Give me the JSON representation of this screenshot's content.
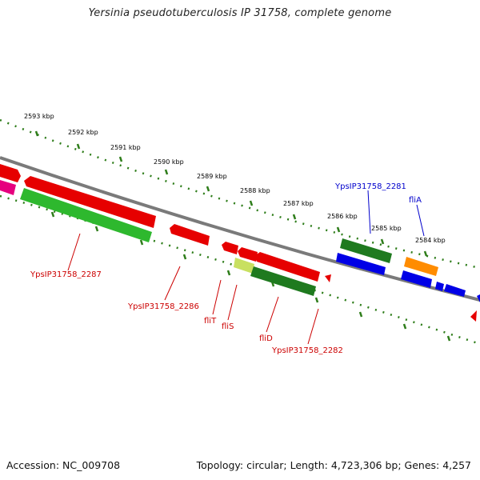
{
  "title": "Yersinia pseudotuberculosis IP 31758, complete genome",
  "footer": {
    "accession": "Accession: NC_009708",
    "summary": "Topology: circular; Length: 4,723,306 bp; Genes: 4,257"
  },
  "ticks": [
    {
      "label": "2593 kbp"
    },
    {
      "label": "2592 kbp"
    },
    {
      "label": "2591 kbp"
    },
    {
      "label": "2590 kbp"
    },
    {
      "label": "2589 kbp"
    },
    {
      "label": "2588 kbp"
    },
    {
      "label": "2587 kbp"
    },
    {
      "label": "2586 kbp"
    },
    {
      "label": "2585 kbp"
    },
    {
      "label": "2584 kbp"
    }
  ],
  "gene_labels": [
    {
      "text": "YpsIP31758_2287",
      "color": "#cc0000"
    },
    {
      "text": "YpsIP31758_2286",
      "color": "#cc0000"
    },
    {
      "text": "fliT",
      "color": "#cc0000"
    },
    {
      "text": "fliS",
      "color": "#cc0000"
    },
    {
      "text": "fliD",
      "color": "#cc0000"
    },
    {
      "text": "YpsIP31758_2282",
      "color": "#cc0000"
    },
    {
      "text": "YpsIP31758_2281",
      "color": "#0000cc"
    },
    {
      "text": "fliA",
      "color": "#0000cc"
    }
  ],
  "colors": {
    "backbone": "#7a7a7a",
    "tick_dots": "#2e7d1a",
    "red_feature": "#e60000",
    "green_feature": "#2eb82e",
    "dark_green_feature": "#1f7a1f",
    "blue_feature": "#0000e6",
    "orange_feature": "#ff8c00",
    "magenta_feature": "#e6007e",
    "yellow_feature": "#c8e060"
  }
}
